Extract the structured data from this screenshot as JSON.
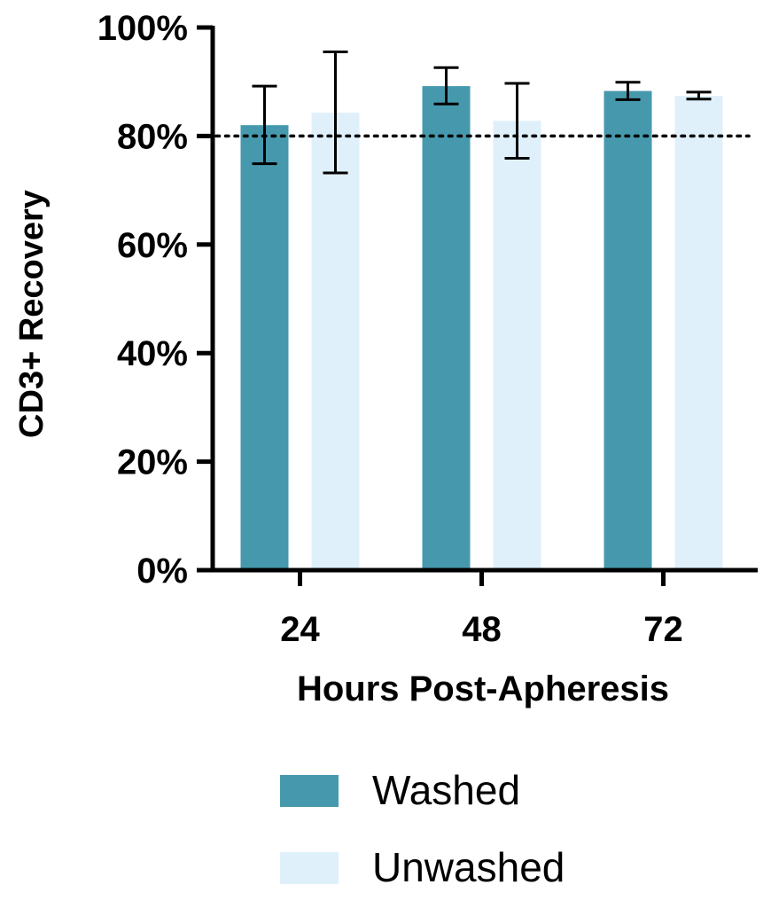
{
  "chart_data": {
    "type": "bar",
    "xlabel": "Hours Post-Apheresis",
    "ylabel": "CD3+ Recovery",
    "categories": [
      "24",
      "48",
      "72"
    ],
    "ylim": [
      0,
      100
    ],
    "yticks": [
      "0%",
      "20%",
      "40%",
      "60%",
      "80%",
      "100%"
    ],
    "ytick_values": [
      0,
      20,
      40,
      60,
      80,
      100
    ],
    "reference_line": {
      "value": 80,
      "style": "dotted"
    },
    "grid": false,
    "legend_position": "bottom",
    "series": [
      {
        "name": "Washed",
        "color": "#4699AD",
        "values": [
          82.0,
          89.2,
          88.3
        ],
        "error_low": [
          74.9,
          85.9,
          86.7
        ],
        "error_high": [
          89.2,
          92.6,
          89.9
        ]
      },
      {
        "name": "Unwashed",
        "color": "#DFF0FA",
        "values": [
          84.3,
          82.8,
          87.4
        ],
        "error_low": [
          73.2,
          75.9,
          86.8
        ],
        "error_high": [
          95.5,
          89.7,
          88.1
        ]
      }
    ]
  }
}
